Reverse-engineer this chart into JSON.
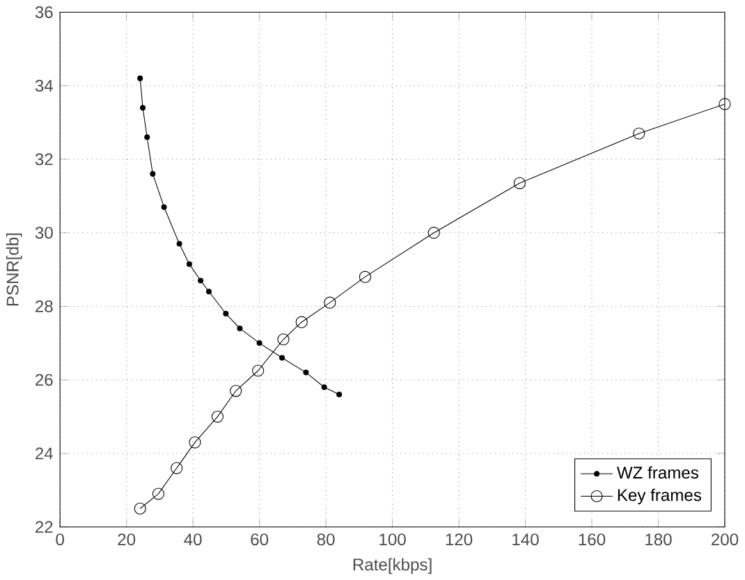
{
  "chart_data": {
    "type": "line",
    "xlabel": "Rate[kbps]",
    "ylabel": "PSNR[db]",
    "xlim": [
      0,
      200
    ],
    "ylim": [
      22,
      36
    ],
    "xticks": [
      0,
      20,
      40,
      60,
      80,
      100,
      120,
      140,
      160,
      180,
      200
    ],
    "yticks": [
      22,
      24,
      26,
      28,
      30,
      32,
      34,
      36
    ],
    "grid": true,
    "legend": "bottom right",
    "series": [
      {
        "name": "WZ frames",
        "color": "#000000",
        "marker": "circle",
        "x": [
          24.1,
          24.9,
          26.2,
          27.9,
          31.3,
          35.9,
          38.9,
          42.3,
          44.8,
          49.9,
          54.1,
          60,
          66.8,
          74,
          79.5,
          84
        ],
        "values": [
          34.2,
          33.4,
          32.6,
          31.6,
          30.7,
          29.7,
          29.15,
          28.7,
          28.4,
          27.8,
          27.4,
          27.0,
          26.6,
          26.2,
          25.8,
          25.6
        ]
      },
      {
        "name": "Key frames",
        "color": "#000000",
        "marker": "circle_open",
        "x": [
          24.1,
          29.6,
          35.1,
          40.6,
          47.4,
          52.9,
          59.6,
          67.2,
          72.7,
          81.2,
          91.8,
          112.5,
          138.3,
          174.2,
          200
        ],
        "values": [
          22.5,
          22.9,
          23.6,
          24.3,
          25.0,
          25.7,
          26.25,
          27.1,
          27.57,
          28.1,
          28.8,
          30.0,
          31.35,
          32.7,
          33.5
        ]
      }
    ]
  }
}
